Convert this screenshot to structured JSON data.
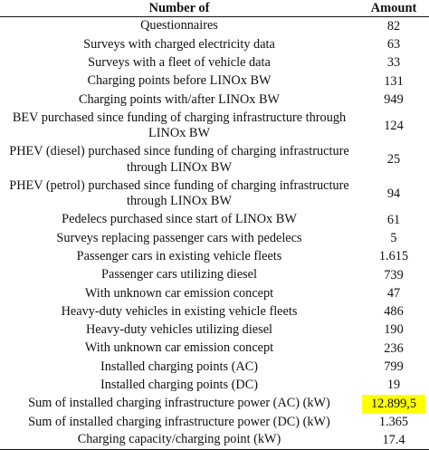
{
  "table": {
    "headers": {
      "label": "Number of",
      "amount": "Amount"
    },
    "rows": [
      {
        "label": "Questionnaires",
        "amount": "82",
        "lines": 1
      },
      {
        "label": "Surveys with charged electricity data",
        "amount": "63",
        "lines": 1
      },
      {
        "label": "Surveys with a fleet of vehicle data",
        "amount": "33",
        "lines": 1
      },
      {
        "label": "Charging points before LINOx BW",
        "amount": "131",
        "lines": 1
      },
      {
        "label": "Charging points with/after LINOx BW",
        "amount": "949",
        "lines": 1
      },
      {
        "label": "BEV purchased since funding of charging infrastructure through LINOx BW",
        "amount": "124",
        "lines": 2
      },
      {
        "label": "PHEV (diesel) purchased since funding of charging infrastructure through LINOx BW",
        "amount": "25",
        "lines": 2
      },
      {
        "label": "PHEV (petrol) purchased since funding of charging infrastructure through LINOx BW",
        "amount": "94",
        "lines": 2
      },
      {
        "label": "Pedelecs purchased since start of LINOx BW",
        "amount": "61",
        "lines": 1
      },
      {
        "label": "Surveys replacing passenger cars with pedelecs",
        "amount": "5",
        "lines": 1
      },
      {
        "label": "Passenger cars in existing vehicle fleets",
        "amount": "1.615",
        "lines": 1
      },
      {
        "label": "Passenger cars utilizing diesel",
        "amount": "739",
        "lines": 1
      },
      {
        "label": "With unknown car emission concept",
        "amount": "47",
        "lines": 1
      },
      {
        "label": "Heavy-duty vehicles in existing vehicle fleets",
        "amount": "486",
        "lines": 1
      },
      {
        "label": "Heavy-duty vehicles utilizing diesel",
        "amount": "190",
        "lines": 1
      },
      {
        "label": "With unknown car emission concept",
        "amount": "236",
        "lines": 1
      },
      {
        "label": "Installed charging points (AC)",
        "amount": "799",
        "lines": 1
      },
      {
        "label": "Installed charging points (DC)",
        "amount": "19",
        "lines": 1
      },
      {
        "label": "Sum of installed charging infrastructure power (AC) (kW)",
        "amount": "12.899,5",
        "lines": 1,
        "highlight": true
      },
      {
        "label": "Sum of installed charging infrastructure power (DC) (kW)",
        "amount": "1.365",
        "lines": 1
      },
      {
        "label": "Charging capacity/charging point (kW)",
        "amount": "17.4",
        "lines": 1
      }
    ],
    "colors": {
      "highlight": "#ffff00",
      "text": "#111111",
      "rule": "#111111"
    }
  }
}
